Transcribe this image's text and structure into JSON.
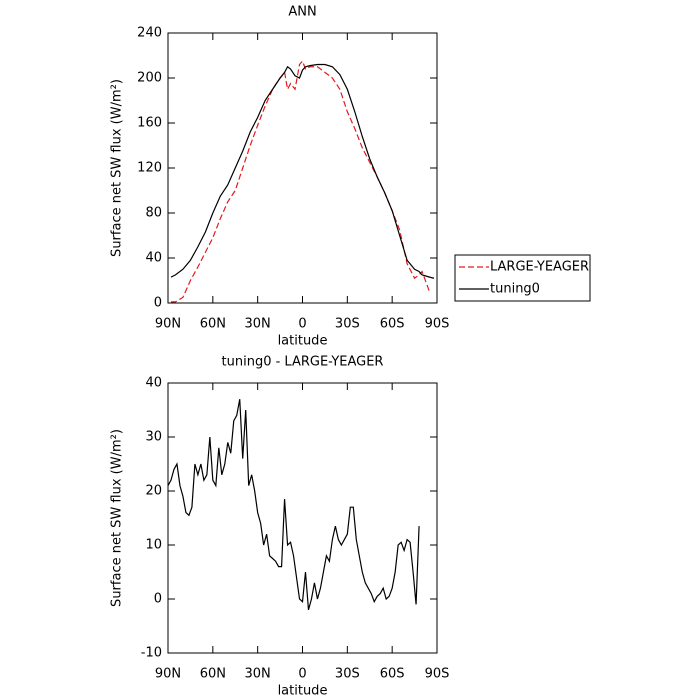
{
  "chart_data": [
    {
      "type": "line",
      "title": "ANN",
      "xlabel": "latitude",
      "ylabel": "Surface net SW flux (W/m²)",
      "x": [
        88,
        85,
        80,
        75,
        70,
        65,
        60,
        55,
        50,
        45,
        40,
        35,
        30,
        25,
        20,
        15,
        12,
        10,
        8,
        5,
        2,
        0,
        -2,
        -5,
        -10,
        -15,
        -20,
        -25,
        -30,
        -35,
        -40,
        -45,
        -50,
        -55,
        -60,
        -65,
        -70,
        -75,
        -78,
        -80,
        -85,
        -88
      ],
      "series": [
        {
          "name": "LARGE-YEAGER",
          "color": "#e41a1c",
          "linestyle": "dashed",
          "values": [
            1,
            1,
            5,
            20,
            32,
            45,
            58,
            75,
            90,
            100,
            120,
            140,
            158,
            175,
            190,
            200,
            205,
            190,
            195,
            190,
            212,
            215,
            208,
            210,
            210,
            205,
            200,
            190,
            170,
            155,
            138,
            125,
            112,
            98,
            82,
            65,
            35,
            22,
            25,
            28,
            10,
            null
          ]
        },
        {
          "name": "tuning0",
          "color": "#000000",
          "linestyle": "solid",
          "values": [
            23,
            25,
            30,
            38,
            50,
            63,
            80,
            95,
            105,
            120,
            135,
            152,
            165,
            180,
            190,
            200,
            205,
            210,
            208,
            202,
            200,
            207,
            210,
            211,
            212,
            212,
            210,
            203,
            190,
            170,
            148,
            128,
            112,
            98,
            82,
            60,
            38,
            30,
            28,
            25,
            23,
            22
          ]
        }
      ],
      "xlim": [
        90,
        -90
      ],
      "xticks": [
        {
          "value": 90,
          "label": "90N"
        },
        {
          "value": 60,
          "label": "60N"
        },
        {
          "value": 30,
          "label": "30N"
        },
        0,
        {
          "value": -30,
          "label": "30S"
        },
        {
          "value": -60,
          "label": "60S"
        },
        {
          "value": -90,
          "label": "90S"
        }
      ],
      "ylim": [
        0,
        240
      ],
      "yticks": [
        0,
        40,
        80,
        120,
        160,
        200,
        240
      ],
      "legend": "right"
    },
    {
      "type": "line",
      "title": "tuning0 - LARGE-YEAGER",
      "xlabel": "latitude",
      "ylabel": "Surface net SW flux (W/m²)",
      "x": [
        90,
        88,
        86,
        84,
        82,
        80,
        78,
        76,
        74,
        72,
        70,
        68,
        66,
        64,
        62,
        60,
        58,
        56,
        54,
        52,
        50,
        48,
        46,
        44,
        42,
        40,
        38,
        36,
        34,
        32,
        30,
        28,
        26,
        24,
        22,
        20,
        18,
        16,
        14,
        12,
        10,
        8,
        6,
        4,
        2,
        0,
        -2,
        -4,
        -6,
        -8,
        -10,
        -12,
        -14,
        -16,
        -18,
        -20,
        -22,
        -24,
        -26,
        -28,
        -30,
        -32,
        -34,
        -36,
        -38,
        -40,
        -42,
        -44,
        -46,
        -48,
        -50,
        -52,
        -54,
        -56,
        -58,
        -60,
        -62,
        -64,
        -66,
        -68,
        -70,
        -72,
        -74,
        -76,
        -78
      ],
      "color": "#000000",
      "values": [
        21,
        22,
        24,
        25,
        21,
        19,
        16,
        15.5,
        17,
        25,
        23,
        25,
        22,
        23,
        30,
        22,
        21,
        28,
        23,
        25,
        29,
        27,
        33,
        34,
        37,
        26,
        35,
        21,
        23,
        20,
        16,
        14,
        10,
        12,
        8,
        7.5,
        7,
        6,
        6,
        18.5,
        10,
        10.5,
        8,
        4,
        0,
        -0.5,
        5,
        -2,
        0,
        3,
        0,
        2,
        5,
        8,
        7,
        11,
        13.5,
        11,
        10,
        11,
        12,
        17,
        17,
        11,
        8,
        5,
        3,
        2,
        1,
        -0.5,
        0.5,
        1,
        2,
        0,
        0.5,
        2,
        5,
        10,
        10.5,
        9,
        11,
        10.5,
        5,
        -1,
        13.5
      ],
      "xlim": [
        90,
        -90
      ],
      "xticks": [
        {
          "value": 90,
          "label": "90N"
        },
        {
          "value": 60,
          "label": "60N"
        },
        {
          "value": 30,
          "label": "30N"
        },
        0,
        {
          "value": -30,
          "label": "30S"
        },
        {
          "value": -60,
          "label": "60S"
        },
        {
          "value": -90,
          "label": "90S"
        }
      ],
      "ylim": [
        -10,
        40
      ],
      "yticks": [
        -10,
        0,
        10,
        20,
        30,
        40
      ]
    }
  ]
}
